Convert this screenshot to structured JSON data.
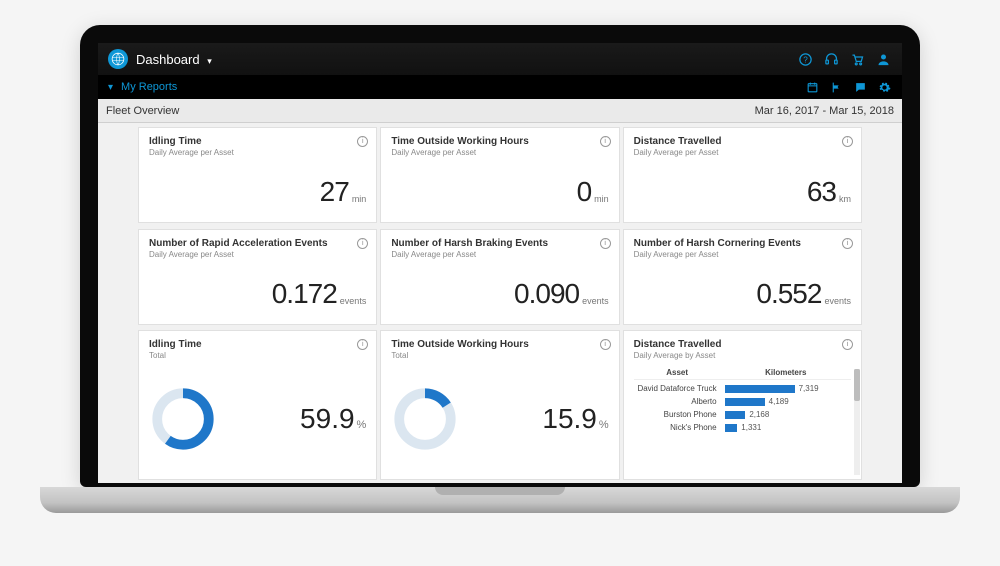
{
  "colors": {
    "accent": "#0e97d6",
    "bar": "#1f77c9",
    "donut_bg": "#dbe6f0",
    "text": "#333333",
    "muted": "#888888",
    "card_bg": "#ffffff",
    "page_bg": "#f1f1f1"
  },
  "topbar": {
    "title": "Dashboard",
    "icons": [
      "help-icon",
      "headset-icon",
      "cart-icon",
      "user-icon"
    ]
  },
  "subbar": {
    "label": "My Reports",
    "icons": [
      "calendar-icon",
      "flag-icon",
      "chat-icon",
      "gear-icon"
    ]
  },
  "page": {
    "title": "Fleet Overview",
    "date_range": "Mar 16, 2017 - Mar 15, 2018"
  },
  "cards": {
    "row1": [
      {
        "title": "Idling Time",
        "sub": "Daily Average per Asset",
        "value": "27",
        "unit": "min"
      },
      {
        "title": "Time Outside Working Hours",
        "sub": "Daily Average per Asset",
        "value": "0",
        "unit": "min"
      },
      {
        "title": "Distance Travelled",
        "sub": "Daily Average per Asset",
        "value": "63",
        "unit": "km"
      }
    ],
    "row2": [
      {
        "title": "Number of Rapid Acceleration Events",
        "sub": "Daily Average per Asset",
        "value": "0.172",
        "unit": "events"
      },
      {
        "title": "Number of Harsh Braking Events",
        "sub": "Daily Average per Asset",
        "value": "0.090",
        "unit": "events"
      },
      {
        "title": "Number of Harsh Cornering Events",
        "sub": "Daily Average per Asset",
        "value": "0.552",
        "unit": "events"
      }
    ],
    "row3": {
      "donut1": {
        "title": "Idling Time",
        "sub": "Total",
        "percent": 59.9,
        "display": "59.9",
        "unit": "%",
        "color": "#1f77c9",
        "bg": "#dbe6f0"
      },
      "donut2": {
        "title": "Time Outside Working Hours",
        "sub": "Total",
        "percent": 15.9,
        "display": "15.9",
        "unit": "%",
        "color": "#1f77c9",
        "bg": "#dbe6f0"
      },
      "bars": {
        "title": "Distance Travelled",
        "sub": "Daily Average by Asset",
        "col1": "Asset",
        "col2": "Kilometers",
        "max": 7319,
        "rows": [
          {
            "label": "David Dataforce Truck",
            "value": 7319,
            "display": "7,319"
          },
          {
            "label": "Alberto",
            "value": 4189,
            "display": "4,189"
          },
          {
            "label": "Burston Phone",
            "value": 2168,
            "display": "2,168"
          },
          {
            "label": "Nick's Phone",
            "value": 1331,
            "display": "1,331"
          }
        ]
      }
    }
  }
}
